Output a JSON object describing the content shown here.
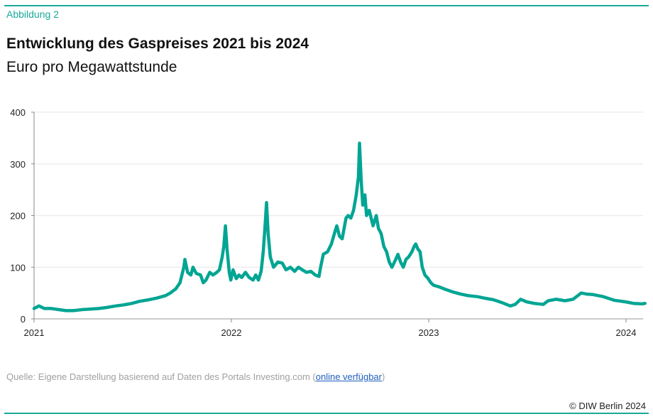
{
  "header": {
    "label": "Abbildung 2",
    "title": "Entwicklung des Gaspreises 2021 bis 2024",
    "subtitle": "Euro pro Megawattstunde"
  },
  "footer": {
    "source_prefix": "Quelle: Eigene Darstellung basierend auf Daten des Portals Investing.com (",
    "source_link": "online verfügbar",
    "source_suffix": ")",
    "copyright": "© DIW Berlin 2024"
  },
  "colors": {
    "line": "#00a593",
    "rule": "#1aa99a",
    "grid": "#eeeeee"
  },
  "chart_data": {
    "type": "line",
    "title": "Entwicklung des Gaspreises 2021 bis 2024",
    "ylabel": "Euro pro Megawattstunde",
    "xlabel": "",
    "ylim": [
      0,
      400
    ],
    "yticks": [
      "0",
      "100",
      "200",
      "300",
      "400"
    ],
    "xlim": [
      "2021-01-01",
      "2024-02-05"
    ],
    "xticks": [
      {
        "date": "2021-01-01",
        "label": "2021"
      },
      {
        "date": "2022-01-01",
        "label": "2022"
      },
      {
        "date": "2023-01-01",
        "label": "2023"
      },
      {
        "date": "2024-01-01",
        "label": "2024"
      }
    ],
    "grid": "horizontal",
    "legend": "none",
    "points": [
      [
        "2021-01-01",
        20
      ],
      [
        "2021-01-10",
        25
      ],
      [
        "2021-01-20",
        20
      ],
      [
        "2021-02-01",
        20
      ],
      [
        "2021-02-15",
        18
      ],
      [
        "2021-03-01",
        16
      ],
      [
        "2021-03-15",
        16
      ],
      [
        "2021-04-01",
        18
      ],
      [
        "2021-04-15",
        19
      ],
      [
        "2021-05-01",
        20
      ],
      [
        "2021-05-15",
        22
      ],
      [
        "2021-06-01",
        25
      ],
      [
        "2021-06-15",
        27
      ],
      [
        "2021-07-01",
        30
      ],
      [
        "2021-07-15",
        34
      ],
      [
        "2021-08-01",
        37
      ],
      [
        "2021-08-15",
        40
      ],
      [
        "2021-09-01",
        45
      ],
      [
        "2021-09-10",
        50
      ],
      [
        "2021-09-20",
        58
      ],
      [
        "2021-09-28",
        70
      ],
      [
        "2021-10-05",
        100
      ],
      [
        "2021-10-07",
        115
      ],
      [
        "2021-10-12",
        90
      ],
      [
        "2021-10-18",
        85
      ],
      [
        "2021-10-22",
        100
      ],
      [
        "2021-10-28",
        88
      ],
      [
        "2021-11-05",
        85
      ],
      [
        "2021-11-10",
        70
      ],
      [
        "2021-11-15",
        75
      ],
      [
        "2021-11-22",
        90
      ],
      [
        "2021-11-28",
        85
      ],
      [
        "2021-12-05",
        90
      ],
      [
        "2021-12-10",
        95
      ],
      [
        "2021-12-15",
        120
      ],
      [
        "2021-12-18",
        140
      ],
      [
        "2021-12-21",
        180
      ],
      [
        "2021-12-24",
        135
      ],
      [
        "2021-12-28",
        90
      ],
      [
        "2021-12-31",
        75
      ],
      [
        "2022-01-04",
        95
      ],
      [
        "2022-01-10",
        78
      ],
      [
        "2022-01-15",
        85
      ],
      [
        "2022-01-20",
        80
      ],
      [
        "2022-01-27",
        90
      ],
      [
        "2022-02-03",
        80
      ],
      [
        "2022-02-10",
        75
      ],
      [
        "2022-02-15",
        85
      ],
      [
        "2022-02-20",
        75
      ],
      [
        "2022-02-25",
        92
      ],
      [
        "2022-03-01",
        130
      ],
      [
        "2022-03-04",
        175
      ],
      [
        "2022-03-07",
        225
      ],
      [
        "2022-03-10",
        165
      ],
      [
        "2022-03-14",
        120
      ],
      [
        "2022-03-20",
        100
      ],
      [
        "2022-03-28",
        110
      ],
      [
        "2022-04-05",
        108
      ],
      [
        "2022-04-12",
        95
      ],
      [
        "2022-04-20",
        100
      ],
      [
        "2022-04-28",
        92
      ],
      [
        "2022-05-05",
        100
      ],
      [
        "2022-05-12",
        95
      ],
      [
        "2022-05-20",
        90
      ],
      [
        "2022-05-28",
        92
      ],
      [
        "2022-06-05",
        85
      ],
      [
        "2022-06-12",
        82
      ],
      [
        "2022-06-15",
        100
      ],
      [
        "2022-06-20",
        125
      ],
      [
        "2022-06-28",
        130
      ],
      [
        "2022-07-05",
        145
      ],
      [
        "2022-07-12",
        170
      ],
      [
        "2022-07-15",
        180
      ],
      [
        "2022-07-20",
        160
      ],
      [
        "2022-07-25",
        155
      ],
      [
        "2022-08-01",
        195
      ],
      [
        "2022-08-05",
        200
      ],
      [
        "2022-08-10",
        195
      ],
      [
        "2022-08-15",
        210
      ],
      [
        "2022-08-20",
        240
      ],
      [
        "2022-08-24",
        275
      ],
      [
        "2022-08-26",
        340
      ],
      [
        "2022-08-29",
        270
      ],
      [
        "2022-09-01",
        220
      ],
      [
        "2022-09-05",
        240
      ],
      [
        "2022-09-08",
        200
      ],
      [
        "2022-09-13",
        210
      ],
      [
        "2022-09-20",
        180
      ],
      [
        "2022-09-26",
        200
      ],
      [
        "2022-09-30",
        175
      ],
      [
        "2022-10-05",
        165
      ],
      [
        "2022-10-10",
        140
      ],
      [
        "2022-10-15",
        130
      ],
      [
        "2022-10-20",
        110
      ],
      [
        "2022-10-25",
        100
      ],
      [
        "2022-11-01",
        115
      ],
      [
        "2022-11-05",
        125
      ],
      [
        "2022-11-10",
        110
      ],
      [
        "2022-11-15",
        100
      ],
      [
        "2022-11-20",
        115
      ],
      [
        "2022-11-25",
        120
      ],
      [
        "2022-12-01",
        130
      ],
      [
        "2022-12-05",
        140
      ],
      [
        "2022-12-08",
        145
      ],
      [
        "2022-12-12",
        135
      ],
      [
        "2022-12-16",
        130
      ],
      [
        "2022-12-20",
        100
      ],
      [
        "2022-12-25",
        85
      ],
      [
        "2022-12-31",
        78
      ],
      [
        "2023-01-05",
        70
      ],
      [
        "2023-01-10",
        65
      ],
      [
        "2023-01-20",
        62
      ],
      [
        "2023-02-01",
        57
      ],
      [
        "2023-02-15",
        52
      ],
      [
        "2023-03-01",
        48
      ],
      [
        "2023-03-15",
        45
      ],
      [
        "2023-04-01",
        43
      ],
      [
        "2023-04-15",
        40
      ],
      [
        "2023-05-01",
        37
      ],
      [
        "2023-05-15",
        32
      ],
      [
        "2023-06-01",
        25
      ],
      [
        "2023-06-10",
        28
      ],
      [
        "2023-06-20",
        38
      ],
      [
        "2023-07-01",
        33
      ],
      [
        "2023-07-15",
        30
      ],
      [
        "2023-08-01",
        28
      ],
      [
        "2023-08-10",
        35
      ],
      [
        "2023-08-25",
        38
      ],
      [
        "2023-09-10",
        35
      ],
      [
        "2023-09-25",
        38
      ],
      [
        "2023-10-10",
        50
      ],
      [
        "2023-10-20",
        48
      ],
      [
        "2023-11-01",
        47
      ],
      [
        "2023-11-20",
        43
      ],
      [
        "2023-12-10",
        36
      ],
      [
        "2023-12-31",
        33
      ],
      [
        "2024-01-15",
        30
      ],
      [
        "2024-01-31",
        29
      ],
      [
        "2024-02-05",
        30
      ]
    ]
  }
}
